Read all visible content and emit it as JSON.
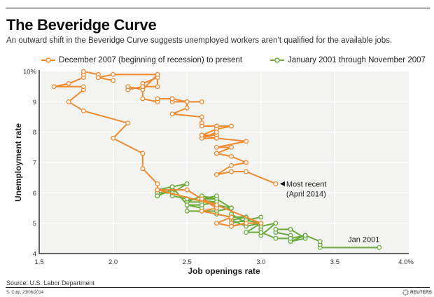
{
  "header": {
    "title": "The Beveridge Curve",
    "subtitle": "An outward shift in the Beveridge Curve suggests unemployed workers aren’t qualified for the available jobs."
  },
  "footer": {
    "source": "Source: U.S. Labor Department",
    "credit": "S. Culp, 23/06/2014",
    "brand": "REUTERS"
  },
  "chart_data": {
    "type": "line",
    "title": "The Beveridge Curve",
    "xlabel": "Job openings rate",
    "ylabel": "Unemployment rate",
    "xlim": [
      1.5,
      4.0
    ],
    "ylim": [
      4,
      10
    ],
    "x_ticks": [
      "1.5",
      "2.0",
      "2.5",
      "3.0",
      "3.5",
      "4.0%"
    ],
    "y_ticks": [
      "4",
      "5",
      "6",
      "7",
      "8",
      "9",
      "10%"
    ],
    "grid": true,
    "legend_position": "top",
    "series": [
      {
        "name": "January 2001 through November 2007",
        "color": "#6aab3c",
        "points": [
          [
            3.8,
            4.2
          ],
          [
            3.4,
            4.2
          ],
          [
            3.4,
            4.3
          ],
          [
            3.4,
            4.4
          ],
          [
            3.3,
            4.6
          ],
          [
            3.2,
            4.4
          ],
          [
            3.2,
            4.6
          ],
          [
            3.1,
            4.7
          ],
          [
            3.1,
            4.8
          ],
          [
            3.2,
            4.8
          ],
          [
            3.3,
            4.5
          ],
          [
            3.2,
            4.4
          ],
          [
            3.3,
            4.6
          ],
          [
            3.2,
            4.5
          ],
          [
            3.1,
            4.5
          ],
          [
            3.0,
            4.7
          ],
          [
            3.0,
            4.8
          ],
          [
            3.0,
            4.6
          ],
          [
            3.1,
            5.0
          ],
          [
            3.0,
            4.9
          ],
          [
            3.0,
            4.7
          ],
          [
            2.9,
            4.7
          ],
          [
            3.0,
            5.0
          ],
          [
            2.9,
            5.1
          ],
          [
            3.0,
            5.2
          ],
          [
            2.9,
            5.1
          ],
          [
            2.8,
            5.0
          ],
          [
            2.8,
            4.9
          ],
          [
            2.9,
            5.0
          ],
          [
            2.8,
            5.3
          ],
          [
            2.8,
            5.5
          ],
          [
            2.7,
            5.4
          ],
          [
            2.7,
            5.6
          ],
          [
            2.8,
            5.5
          ],
          [
            2.7,
            5.8
          ],
          [
            2.6,
            5.8
          ],
          [
            2.6,
            5.7
          ],
          [
            2.5,
            5.7
          ],
          [
            2.6,
            5.9
          ],
          [
            2.7,
            5.8
          ],
          [
            2.7,
            5.9
          ],
          [
            2.6,
            5.8
          ],
          [
            2.6,
            5.5
          ],
          [
            2.5,
            5.6
          ],
          [
            2.6,
            5.6
          ],
          [
            2.7,
            5.7
          ],
          [
            2.5,
            5.8
          ],
          [
            2.4,
            5.9
          ],
          [
            2.4,
            6.0
          ],
          [
            2.3,
            6.0
          ],
          [
            2.3,
            5.9
          ],
          [
            2.3,
            5.9
          ],
          [
            2.4,
            6.1
          ],
          [
            2.4,
            6.2
          ],
          [
            2.5,
            6.3
          ],
          [
            2.4,
            6.0
          ],
          [
            2.3,
            6.1
          ],
          [
            2.4,
            6.2
          ],
          [
            2.5,
            5.6
          ],
          [
            2.5,
            5.4
          ],
          [
            2.6,
            5.4
          ],
          [
            2.7,
            5.4
          ],
          [
            2.7,
            5.3
          ],
          [
            2.8,
            5.2
          ],
          [
            2.9,
            5.2
          ],
          [
            2.8,
            5.1
          ],
          [
            2.9,
            4.9
          ],
          [
            3.0,
            5.0
          ]
        ]
      },
      {
        "name": "December 2007 (beginning of recession) to present",
        "color": "#ef8a2f",
        "points": [
          [
            2.3,
            6.1
          ],
          [
            2.5,
            6.1
          ],
          [
            2.7,
            5.5
          ],
          [
            2.6,
            5.4
          ],
          [
            2.8,
            5.2
          ],
          [
            2.8,
            4.9
          ],
          [
            2.7,
            5.0
          ],
          [
            2.8,
            5.2
          ],
          [
            2.8,
            5.0
          ],
          [
            2.8,
            4.9
          ],
          [
            2.9,
            5.0
          ],
          [
            3.0,
            5.0
          ],
          [
            2.6,
            5.8
          ],
          [
            2.7,
            5.6
          ],
          [
            2.3,
            6.1
          ],
          [
            2.3,
            6.3
          ],
          [
            2.2,
            6.8
          ],
          [
            2.2,
            7.3
          ],
          [
            2.0,
            7.8
          ],
          [
            2.1,
            8.3
          ],
          [
            1.8,
            8.7
          ],
          [
            1.7,
            9.0
          ],
          [
            1.8,
            9.4
          ],
          [
            1.8,
            9.5
          ],
          [
            1.6,
            9.5
          ],
          [
            1.7,
            9.6
          ],
          [
            1.8,
            9.8
          ],
          [
            1.8,
            9.9
          ],
          [
            1.8,
            10.0
          ],
          [
            1.9,
            9.9
          ],
          [
            1.9,
            9.8
          ],
          [
            2.0,
            9.7
          ],
          [
            1.9,
            9.8
          ],
          [
            2.0,
            9.9
          ],
          [
            2.3,
            9.9
          ],
          [
            2.3,
            9.8
          ],
          [
            2.2,
            9.6
          ],
          [
            2.2,
            9.5
          ],
          [
            2.1,
            9.4
          ],
          [
            2.1,
            9.5
          ],
          [
            2.2,
            9.4
          ],
          [
            2.3,
            9.9
          ],
          [
            2.3,
            9.5
          ],
          [
            2.2,
            9.5
          ],
          [
            2.2,
            9.1
          ],
          [
            2.3,
            9.0
          ],
          [
            2.3,
            9.1
          ],
          [
            2.4,
            9.1
          ],
          [
            2.5,
            9.0
          ],
          [
            2.6,
            9.0
          ],
          [
            2.4,
            9.0
          ],
          [
            2.4,
            9.1
          ],
          [
            2.5,
            9.0
          ],
          [
            2.5,
            8.8
          ],
          [
            2.4,
            8.6
          ],
          [
            2.6,
            8.5
          ],
          [
            2.6,
            8.3
          ],
          [
            2.6,
            8.2
          ],
          [
            2.7,
            8.2
          ],
          [
            2.8,
            8.2
          ],
          [
            2.7,
            8.1
          ],
          [
            2.6,
            7.9
          ],
          [
            2.7,
            7.9
          ],
          [
            2.7,
            8.0
          ],
          [
            2.6,
            7.8
          ],
          [
            2.7,
            7.8
          ],
          [
            2.6,
            7.9
          ],
          [
            2.7,
            7.8
          ],
          [
            2.9,
            7.7
          ],
          [
            2.7,
            7.5
          ],
          [
            2.8,
            7.5
          ],
          [
            2.7,
            7.3
          ],
          [
            2.8,
            7.2
          ],
          [
            2.9,
            7.0
          ],
          [
            2.8,
            6.9
          ],
          [
            2.7,
            6.6
          ],
          [
            2.8,
            6.7
          ],
          [
            2.9,
            6.7
          ],
          [
            3.1,
            6.3
          ]
        ]
      }
    ],
    "annotations": [
      {
        "text": "Most recent",
        "text2": "(April 2014)",
        "x": 3.1,
        "y": 6.3
      },
      {
        "text": "Jan 2001",
        "x": 3.8,
        "y": 4.2
      }
    ]
  }
}
